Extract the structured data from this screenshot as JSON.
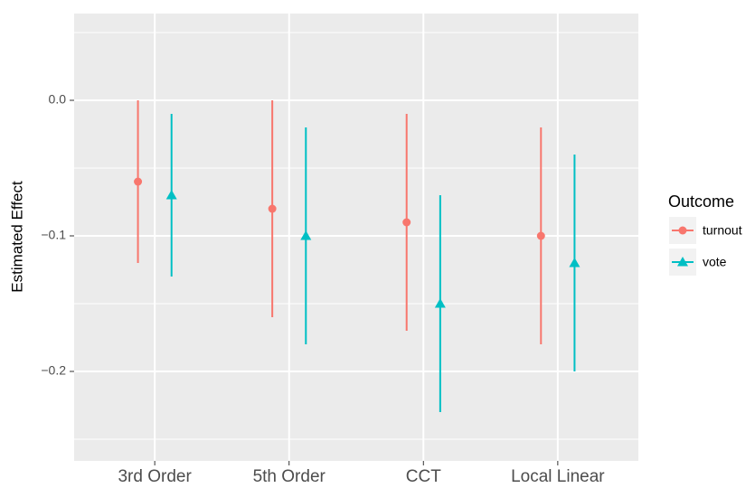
{
  "chart_data": {
    "type": "pointrange",
    "y_label": "Estimated Effect",
    "categories": [
      "3rd Order",
      "5th Order",
      "CCT",
      "Local Linear"
    ],
    "series": [
      {
        "name": "turnout",
        "color": "#f8766d",
        "shape": "circle",
        "values": [
          -0.06,
          -0.08,
          -0.09,
          -0.1
        ],
        "lower": [
          -0.12,
          -0.16,
          -0.17,
          -0.18
        ],
        "upper": [
          0.0,
          0.0,
          -0.01,
          -0.02
        ]
      },
      {
        "name": "vote",
        "color": "#00bfc4",
        "shape": "triangle",
        "values": [
          -0.07,
          -0.1,
          -0.15,
          -0.12
        ],
        "lower": [
          -0.13,
          -0.18,
          -0.23,
          -0.2
        ],
        "upper": [
          -0.01,
          -0.02,
          -0.07,
          -0.04
        ]
      }
    ],
    "ylim": [
      -0.266,
      0.064
    ],
    "yticks": [
      {
        "value": 0,
        "label": "0.0"
      },
      {
        "value": -0.1,
        "label": "−0.1"
      },
      {
        "value": -0.2,
        "label": "−0.2"
      }
    ],
    "minor_yticks": [
      0.05,
      -0.05,
      -0.15,
      -0.25
    ],
    "grid": true,
    "legend_title": "Outcome",
    "legend_position": "right"
  }
}
